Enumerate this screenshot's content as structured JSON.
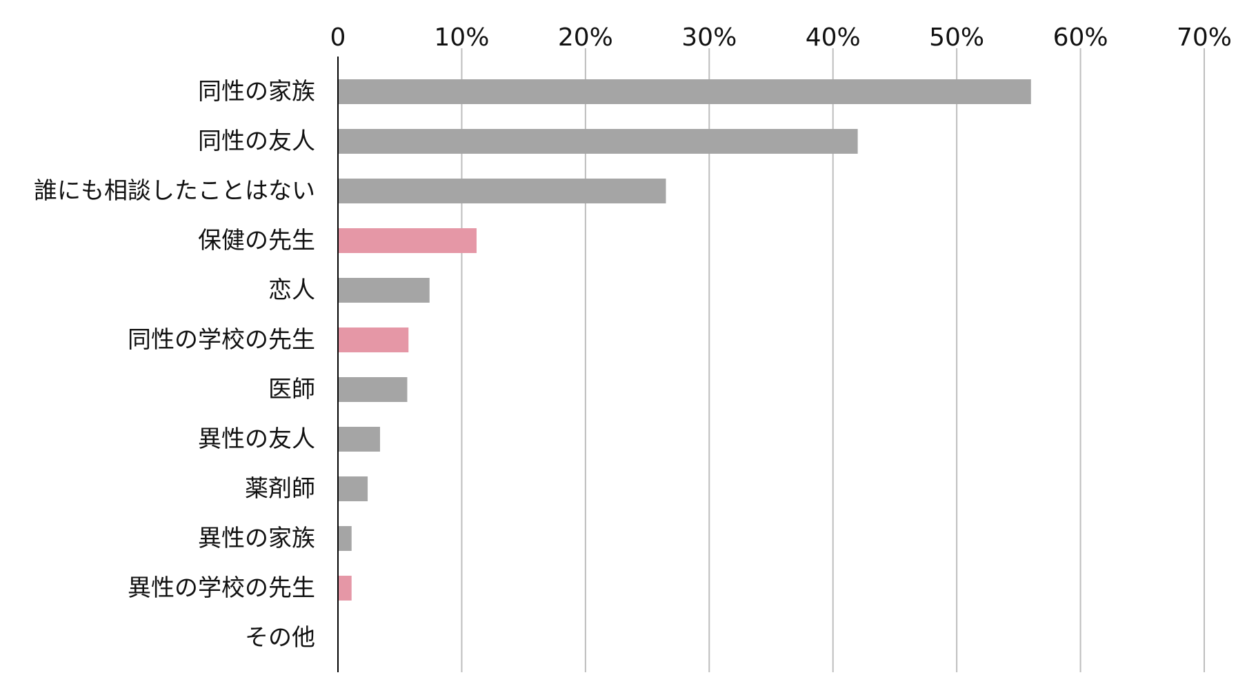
{
  "chart_data": {
    "type": "bar",
    "orientation": "horizontal",
    "title": "",
    "xlabel": "",
    "ylabel": "",
    "xlim": [
      0,
      70
    ],
    "x_ticks": [
      {
        "value": 0,
        "label": "0"
      },
      {
        "value": 10,
        "label": "10%"
      },
      {
        "value": 20,
        "label": "20%"
      },
      {
        "value": 30,
        "label": "30%"
      },
      {
        "value": 40,
        "label": "40%"
      },
      {
        "value": 50,
        "label": "50%"
      },
      {
        "value": 60,
        "label": "60%"
      },
      {
        "value": 70,
        "label": "70%"
      }
    ],
    "x_axis_position": "top",
    "grid": "vertical",
    "legend": "none",
    "categories": [
      "同性の家族",
      "同性の友人",
      "誰にも相談したことはない",
      "保健の先生",
      "恋人",
      "同性の学校の先生",
      "医師",
      "異性の友人",
      "薬剤師",
      "異性の家族",
      "異性の学校の先生",
      "その他"
    ],
    "values": [
      56,
      42,
      26.5,
      11.2,
      7.4,
      5.7,
      5.6,
      3.4,
      2.4,
      1.1,
      1.1,
      0
    ],
    "highlight": [
      false,
      false,
      false,
      true,
      false,
      true,
      false,
      false,
      false,
      false,
      true,
      false
    ],
    "colors": {
      "bar": "#a5a5a5",
      "highlight": "#e597a6",
      "grid": "#bdbdbd",
      "axis": "#000000"
    }
  }
}
